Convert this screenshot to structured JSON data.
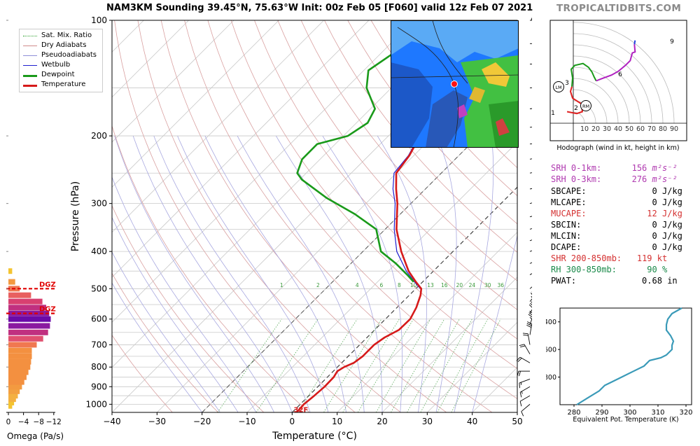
{
  "header": {
    "title": "NAM3KM Sounding 39.45°N, 75.63°W Init: 00z Feb 05 [F060] valid 12z Feb 07 2021",
    "brand": "TROPICALTIDBITS.COM"
  },
  "legend": [
    {
      "label": "Sat. Mix. Ratio",
      "color": "#2ca02c",
      "style": "dotted"
    },
    {
      "label": "Dry Adiabats",
      "color": "#d08a8a",
      "style": "solid"
    },
    {
      "label": "Pseudoadiabats",
      "color": "#8f8fd8",
      "style": "solid"
    },
    {
      "label": "Wetbulb",
      "color": "#1f1fd0",
      "style": "solid"
    },
    {
      "label": "Dewpoint",
      "color": "#1a9a1a",
      "style": "thick"
    },
    {
      "label": "Temperature",
      "color": "#d61a1a",
      "style": "thick"
    }
  ],
  "colors": {
    "temperature": "#d61a1a",
    "dewpoint": "#1a9a1a",
    "wetbulb": "#1f1fd0",
    "hodo_low": "#e02020",
    "hodo_mid": "#1a9a1a",
    "hodo_high": "#b020c0",
    "theta_e": "#3a9ab8"
  },
  "chart_data": [
    {
      "type": "line",
      "name": "skew-t",
      "xlabel": "Temperature (°C)",
      "ylabel": "Pressure (hPa)",
      "xlim": [
        -40,
        50
      ],
      "ylim": [
        1050,
        100
      ],
      "y_scale": "log",
      "x_ticks": [
        "−40",
        "−30",
        "−20",
        "−10",
        "0",
        "10",
        "20",
        "30",
        "40",
        "50"
      ],
      "y_ticks": [
        "100",
        "200",
        "300",
        "400",
        "500",
        "600",
        "700",
        "800",
        "900",
        "1000"
      ],
      "mixing_ratio_labels": [
        "1",
        "2",
        "4",
        "6",
        "8",
        "10",
        "13",
        "16",
        "20",
        "24",
        "30",
        "36"
      ],
      "annotations": [
        "32F"
      ],
      "series": [
        {
          "name": "Temperature",
          "points": [
            [
              1050,
              1.0
            ],
            [
              1000,
              0.8
            ],
            [
              950,
              1.2
            ],
            [
              900,
              1.5
            ],
            [
              850,
              1.4
            ],
            [
              820,
              0.9
            ],
            [
              800,
              1.5
            ],
            [
              780,
              2.7
            ],
            [
              750,
              3.2
            ],
            [
              700,
              3.2
            ],
            [
              670,
              3.9
            ],
            [
              640,
              5.4
            ],
            [
              600,
              5.5
            ],
            [
              560,
              4.3
            ],
            [
              520,
              2.5
            ],
            [
              500,
              1.2
            ],
            [
              480,
              -1.5
            ],
            [
              450,
              -5.5
            ],
            [
              400,
              -11.5
            ],
            [
              350,
              -17.5
            ],
            [
              300,
              -23.0
            ],
            [
              275,
              -26.5
            ],
            [
              250,
              -30.0
            ],
            [
              225,
              -31.0
            ],
            [
              200,
              -33.0
            ],
            [
              175,
              -37.0
            ],
            [
              150,
              -41.0
            ],
            [
              130,
              -45.5
            ],
            [
              115,
              -49.0
            ],
            [
              100,
              -52.5
            ]
          ]
        },
        {
          "name": "Wetbulb",
          "points": [
            [
              500,
              1.0
            ],
            [
              480,
              -1.8
            ],
            [
              450,
              -6.0
            ],
            [
              400,
              -12.5
            ],
            [
              350,
              -18.0
            ],
            [
              300,
              -23.5
            ],
            [
              275,
              -27.2
            ],
            [
              250,
              -30.5
            ],
            [
              225,
              -31.2
            ],
            [
              200,
              -33.2
            ],
            [
              175,
              -37.2
            ],
            [
              150,
              -41.2
            ],
            [
              130,
              -45.8
            ],
            [
              115,
              -49.3
            ],
            [
              100,
              -52.8
            ]
          ]
        },
        {
          "name": "Dewpoint",
          "points": [
            [
              480,
              -2.0
            ],
            [
              460,
              -5.0
            ],
            [
              430,
              -10.0
            ],
            [
              400,
              -16.0
            ],
            [
              350,
              -22.0
            ],
            [
              320,
              -30.0
            ],
            [
              290,
              -40.0
            ],
            [
              260,
              -49.5
            ],
            [
              250,
              -52.0
            ],
            [
              230,
              -54.0
            ],
            [
              210,
              -54.0
            ],
            [
              200,
              -49.0
            ],
            [
              185,
              -47.5
            ],
            [
              170,
              -49.0
            ],
            [
              150,
              -55.5
            ],
            [
              135,
              -59.0
            ],
            [
              120,
              -57.0
            ],
            [
              100,
              -53.0
            ]
          ]
        }
      ]
    },
    {
      "type": "bar",
      "name": "omega",
      "xlabel": "Omega (Pa/s)",
      "x_ticks": [
        "0",
        "−4",
        "−8",
        "−12"
      ],
      "dgz_label": "DGZ",
      "dgz_levels_hpa": [
        500,
        580
      ],
      "bars": [
        {
          "p": 1010,
          "v": 1.0,
          "c": "#f4c430"
        },
        {
          "p": 990,
          "v": 1.5,
          "c": "#f4c430"
        },
        {
          "p": 970,
          "v": 2.0,
          "c": "#f4b040"
        },
        {
          "p": 950,
          "v": 2.5,
          "c": "#f4b040"
        },
        {
          "p": 925,
          "v": 3.0,
          "c": "#f3a040"
        },
        {
          "p": 900,
          "v": 3.6,
          "c": "#f39a40"
        },
        {
          "p": 875,
          "v": 4.2,
          "c": "#f39040"
        },
        {
          "p": 850,
          "v": 4.8,
          "c": "#f39040"
        },
        {
          "p": 825,
          "v": 5.3,
          "c": "#f39040"
        },
        {
          "p": 800,
          "v": 5.8,
          "c": "#f39040"
        },
        {
          "p": 775,
          "v": 6.0,
          "c": "#f39040"
        },
        {
          "p": 750,
          "v": 6.2,
          "c": "#f39040"
        },
        {
          "p": 725,
          "v": 6.2,
          "c": "#f39040"
        },
        {
          "p": 700,
          "v": 7.5,
          "c": "#f07850"
        },
        {
          "p": 675,
          "v": 9.2,
          "c": "#e05070"
        },
        {
          "p": 650,
          "v": 10.5,
          "c": "#c03080"
        },
        {
          "p": 625,
          "v": 11.0,
          "c": "#8a1aa0"
        },
        {
          "p": 600,
          "v": 11.2,
          "c": "#6a0aa8"
        },
        {
          "p": 580,
          "v": 10.8,
          "c": "#8a1aa0"
        },
        {
          "p": 560,
          "v": 10.0,
          "c": "#c03080"
        },
        {
          "p": 540,
          "v": 9.0,
          "c": "#d84070"
        },
        {
          "p": 520,
          "v": 6.0,
          "c": "#e86060"
        },
        {
          "p": 500,
          "v": 3.0,
          "c": "#f07850"
        },
        {
          "p": 480,
          "v": 1.8,
          "c": "#f39a40"
        },
        {
          "p": 450,
          "v": 1.0,
          "c": "#f4c430"
        }
      ]
    },
    {
      "type": "line",
      "name": "hodograph",
      "xlabel": "Hodograph (wind in kt, height in km)",
      "ring_labels": [
        "10",
        "20",
        "30",
        "40",
        "50",
        "60",
        "70",
        "80",
        "90"
      ],
      "marker_labels": [
        "LM",
        "RM",
        "1",
        "2",
        "3",
        "6",
        "9"
      ],
      "series": [
        {
          "name": "0-3 km",
          "points": [
            [
              -9,
              12
            ],
            [
              5,
              10
            ],
            [
              13,
              12
            ],
            [
              12,
              20
            ],
            [
              -1,
              26
            ],
            [
              -4,
              33
            ],
            [
              -2,
              38
            ]
          ]
        },
        {
          "name": "3-6 km",
          "points": [
            [
              -2,
              38
            ],
            [
              -1,
              47
            ],
            [
              -3,
              56
            ],
            [
              2,
              60
            ],
            [
              14,
              62
            ],
            [
              22,
              58
            ],
            [
              27,
              53
            ],
            [
              30,
              48
            ],
            [
              33,
              44
            ]
          ]
        },
        {
          "name": "6-9 km",
          "points": [
            [
              33,
              44
            ],
            [
              40,
              46
            ],
            [
              55,
              50
            ],
            [
              65,
              54
            ],
            [
              75,
              60
            ],
            [
              82,
              65
            ],
            [
              85,
              73
            ],
            [
              89,
              74
            ],
            [
              88,
              82
            ]
          ]
        },
        {
          "name": "9+ km",
          "points": [
            [
              88,
              82
            ],
            [
              89,
              86
            ]
          ]
        }
      ]
    },
    {
      "type": "line",
      "name": "theta-e",
      "xlabel": "Equivalent Pot. Temperature (K)",
      "ylabel": "Pressure (hPa)",
      "xlim": [
        275,
        322
      ],
      "ylim": [
        1000,
        300
      ],
      "x_ticks": [
        "280",
        "290",
        "300",
        "310",
        "320"
      ],
      "y_ticks": [
        "400",
        "600",
        "800"
      ],
      "series": [
        {
          "name": "θe",
          "points": [
            [
              1000,
              281
            ],
            [
              950,
              285
            ],
            [
              900,
              289
            ],
            [
              860,
              291
            ],
            [
              840,
              293
            ],
            [
              800,
              297
            ],
            [
              760,
              301
            ],
            [
              720,
              305
            ],
            [
              680,
              307
            ],
            [
              660,
              311
            ],
            [
              640,
              313
            ],
            [
              600,
              315
            ],
            [
              570,
              315
            ],
            [
              540,
              315.5
            ],
            [
              500,
              314.5
            ],
            [
              460,
              313
            ],
            [
              420,
              313
            ],
            [
              380,
              313.5
            ],
            [
              340,
              315
            ],
            [
              300,
              318.5
            ]
          ]
        }
      ]
    }
  ],
  "stats": {
    "srh01": {
      "label": "SRH 0-1km:",
      "value": "156",
      "unit": "m²s⁻²"
    },
    "srh03": {
      "label": "SRH 0-3km:",
      "value": "276",
      "unit": "m²s⁻²"
    },
    "sbcape": {
      "label": "SBCAPE:",
      "value": "0",
      "unit": "J/kg"
    },
    "mlcape": {
      "label": "MLCAPE:",
      "value": "0",
      "unit": "J/kg"
    },
    "mucape": {
      "label": "MUCAPE:",
      "value": "12",
      "unit": "J/kg"
    },
    "sbcin": {
      "label": "SBCIN:",
      "value": "0",
      "unit": "J/kg"
    },
    "mlcin": {
      "label": "MLCIN:",
      "value": "0",
      "unit": "J/kg"
    },
    "dcape": {
      "label": "DCAPE:",
      "value": "0",
      "unit": "J/kg"
    },
    "shr": {
      "label": "SHR 200-850mb:",
      "value": "119",
      "unit": "kt"
    },
    "rh": {
      "label": "RH 300-850mb:",
      "value": "90",
      "unit": "%"
    },
    "pwat": {
      "label": "PWAT:",
      "value": "0.68",
      "unit": "in"
    }
  },
  "wind_barbs": [
    {
      "p": 100,
      "spd": 95,
      "dir": 270
    },
    {
      "p": 115,
      "spd": 100,
      "dir": 270
    },
    {
      "p": 130,
      "spd": 105,
      "dir": 270
    },
    {
      "p": 150,
      "spd": 110,
      "dir": 265
    },
    {
      "p": 170,
      "spd": 115,
      "dir": 265
    },
    {
      "p": 190,
      "spd": 110,
      "dir": 265
    },
    {
      "p": 210,
      "spd": 105,
      "dir": 265
    },
    {
      "p": 230,
      "spd": 100,
      "dir": 260
    },
    {
      "p": 250,
      "spd": 90,
      "dir": 260
    },
    {
      "p": 275,
      "spd": 85,
      "dir": 260
    },
    {
      "p": 300,
      "spd": 80,
      "dir": 255
    },
    {
      "p": 325,
      "spd": 75,
      "dir": 255
    },
    {
      "p": 350,
      "spd": 75,
      "dir": 255
    },
    {
      "p": 375,
      "spd": 70,
      "dir": 250
    },
    {
      "p": 400,
      "spd": 65,
      "dir": 250
    },
    {
      "p": 430,
      "spd": 60,
      "dir": 245
    },
    {
      "p": 460,
      "spd": 55,
      "dir": 240
    },
    {
      "p": 500,
      "spd": 50,
      "dir": 230
    },
    {
      "p": 540,
      "spd": 45,
      "dir": 220
    },
    {
      "p": 580,
      "spd": 40,
      "dir": 210
    },
    {
      "p": 620,
      "spd": 35,
      "dir": 200
    },
    {
      "p": 660,
      "spd": 30,
      "dir": 190
    },
    {
      "p": 700,
      "spd": 20,
      "dir": 170
    },
    {
      "p": 740,
      "spd": 20,
      "dir": 150
    },
    {
      "p": 780,
      "spd": 20,
      "dir": 120
    },
    {
      "p": 820,
      "spd": 20,
      "dir": 90
    },
    {
      "p": 860,
      "spd": 15,
      "dir": 70
    },
    {
      "p": 900,
      "spd": 15,
      "dir": 60
    },
    {
      "p": 950,
      "spd": 10,
      "dir": 60
    },
    {
      "p": 1000,
      "spd": 10,
      "dir": 50
    }
  ]
}
